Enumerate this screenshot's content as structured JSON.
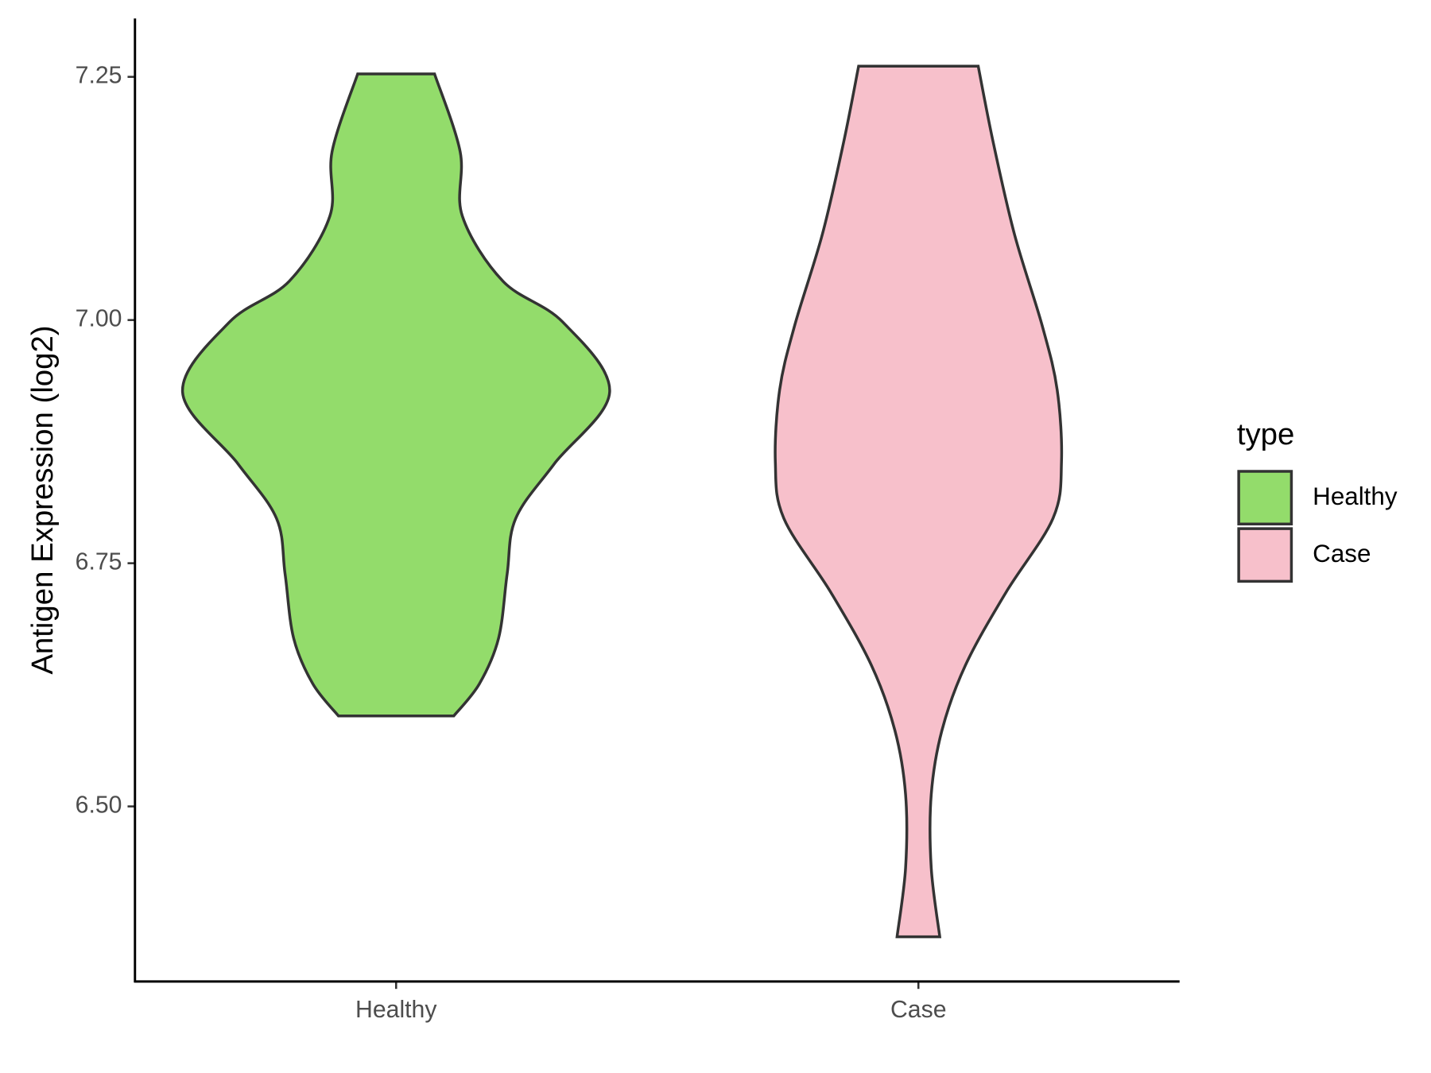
{
  "chart_data": {
    "type": "violin",
    "y_label": "Antigen Expression (log2)",
    "categories": [
      "Healthy",
      "Case"
    ],
    "ylim": [
      6.32,
      7.31
    ],
    "yticks": [
      {
        "value": 6.5,
        "label": "6.50"
      },
      {
        "value": 6.75,
        "label": "6.75"
      },
      {
        "value": 7.0,
        "label": "7.00"
      },
      {
        "value": 7.25,
        "label": "7.25"
      }
    ],
    "grid": false,
    "legend_title": "type",
    "legend_position": "right",
    "series": [
      {
        "name": "Healthy",
        "color": "#93dc6b",
        "y": [
          6.593,
          6.626,
          6.673,
          6.739,
          6.796,
          6.852,
          6.926,
          6.998,
          7.04,
          7.107,
          7.173,
          7.253
        ],
        "widths": [
          0.27,
          0.39,
          0.48,
          0.52,
          0.56,
          0.74,
          1.0,
          0.78,
          0.5,
          0.31,
          0.3,
          0.18
        ]
      },
      {
        "name": "Case",
        "color": "#f7c0cb",
        "y": [
          6.366,
          6.437,
          6.512,
          6.578,
          6.645,
          6.72,
          6.796,
          6.854,
          6.928,
          6.994,
          7.088,
          7.183,
          7.261
        ],
        "widths": [
          0.1,
          0.06,
          0.06,
          0.11,
          0.22,
          0.41,
          0.63,
          0.67,
          0.65,
          0.58,
          0.45,
          0.35,
          0.28
        ]
      }
    ]
  }
}
